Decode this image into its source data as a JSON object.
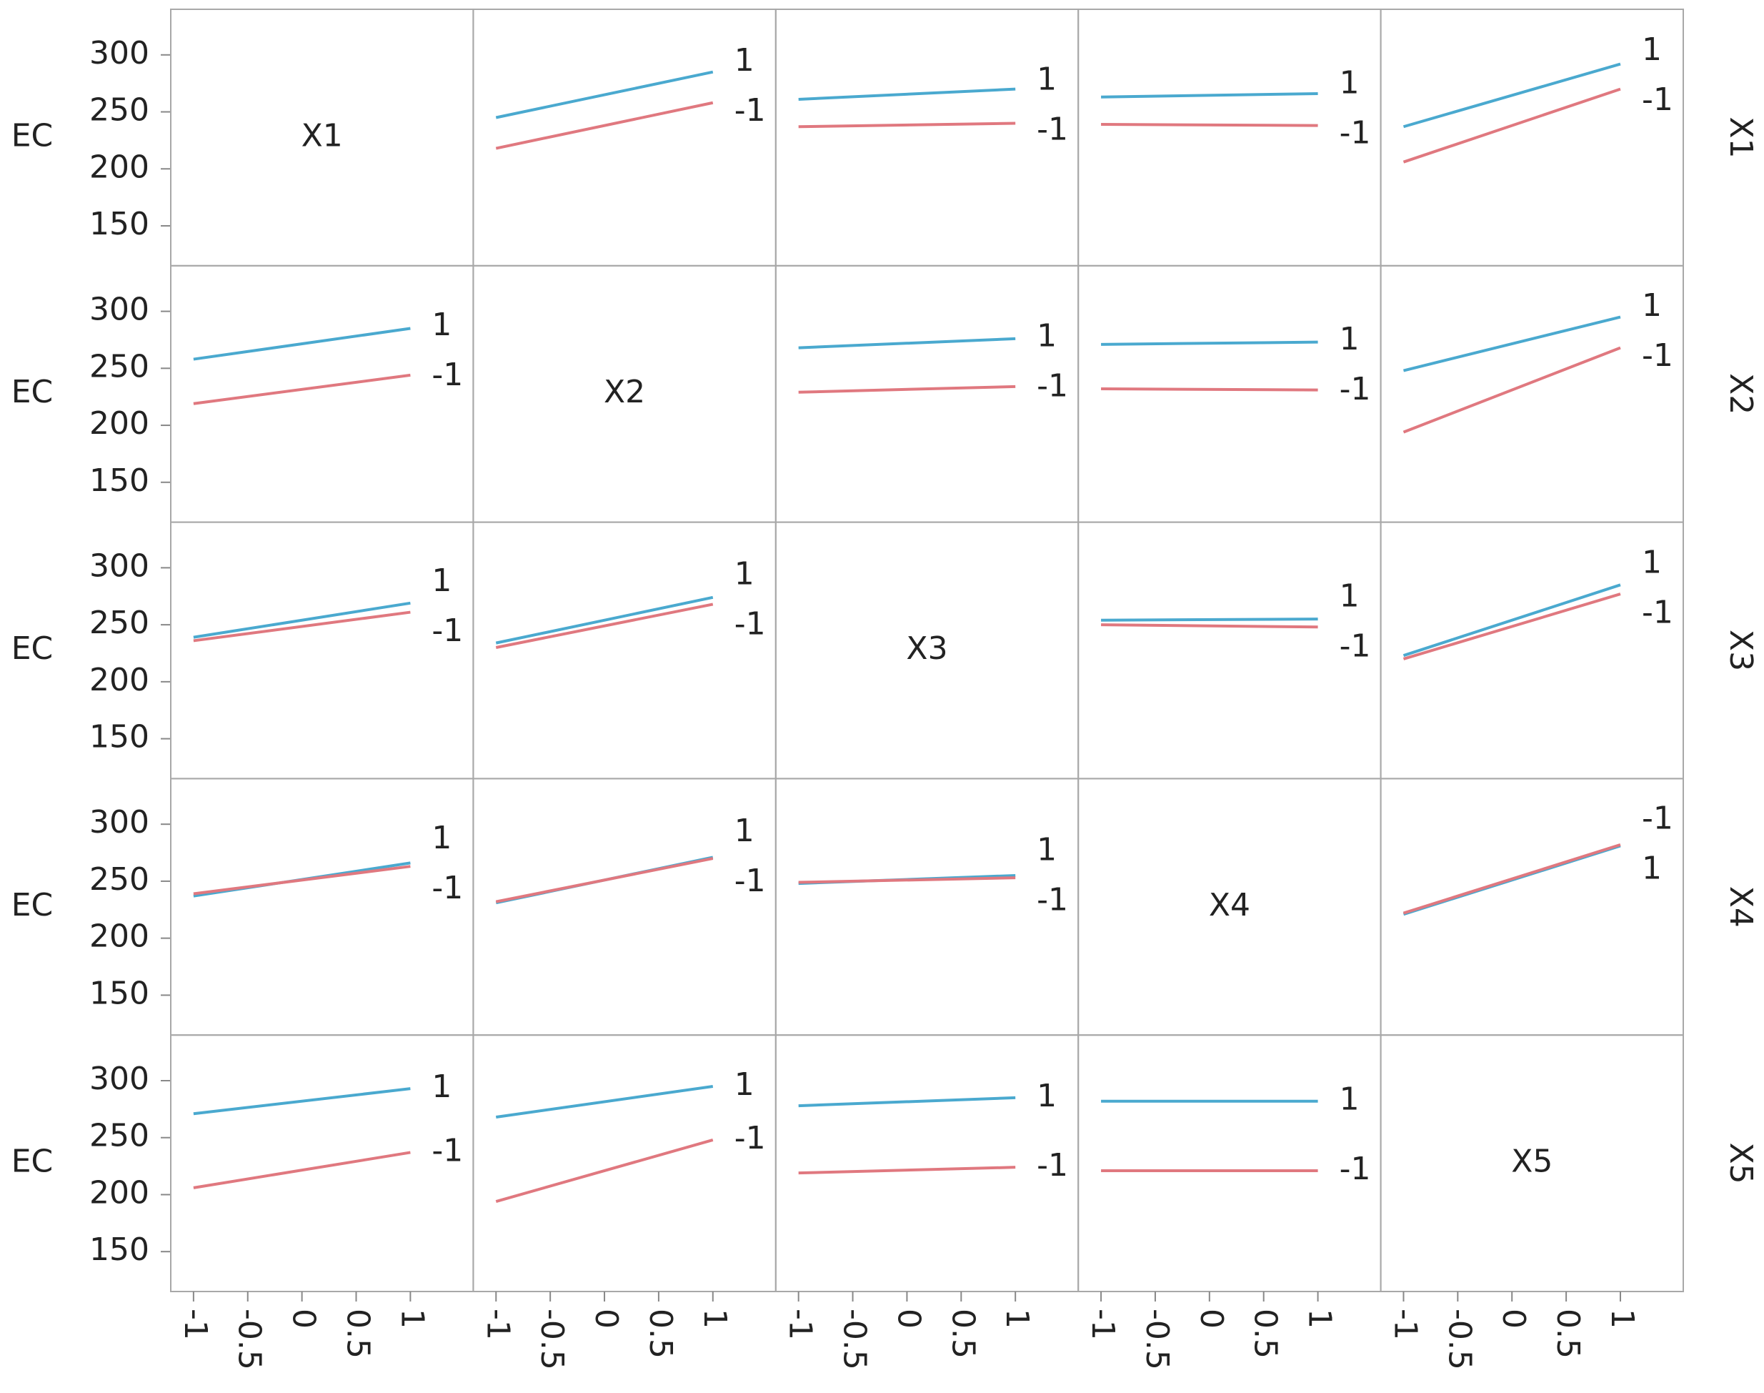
{
  "chart_data": {
    "type": "line",
    "y_label": "EC",
    "factors": [
      "X1",
      "X2",
      "X3",
      "X4",
      "X5"
    ],
    "x": [
      -1,
      1
    ],
    "xlim": [
      -1.21,
      1.58
    ],
    "xticks": [
      -1,
      -0.5,
      0,
      0.5,
      1
    ],
    "ylim": [
      115,
      340
    ],
    "yticks": [
      150,
      200,
      250,
      300
    ],
    "grid": false,
    "panels": [
      [
        null,
        {
          "series": [
            {
              "name": "1",
              "color": "#4aa9cf",
              "values": [
                245,
                285
              ]
            },
            {
              "name": "-1",
              "color": "#e0787f",
              "values": [
                218,
                258
              ]
            }
          ]
        },
        {
          "series": [
            {
              "name": "1",
              "color": "#4aa9cf",
              "values": [
                261,
                270
              ]
            },
            {
              "name": "-1",
              "color": "#e0787f",
              "values": [
                237,
                240
              ]
            }
          ]
        },
        {
          "series": [
            {
              "name": "1",
              "color": "#4aa9cf",
              "values": [
                263,
                266
              ]
            },
            {
              "name": "-1",
              "color": "#e0787f",
              "values": [
                239,
                238
              ]
            }
          ]
        },
        {
          "series": [
            {
              "name": "1",
              "color": "#4aa9cf",
              "values": [
                237,
                292
              ]
            },
            {
              "name": "-1",
              "color": "#e0787f",
              "values": [
                206,
                270
              ]
            }
          ]
        }
      ],
      [
        {
          "series": [
            {
              "name": "1",
              "color": "#4aa9cf",
              "values": [
                258,
                285
              ]
            },
            {
              "name": "-1",
              "color": "#e0787f",
              "values": [
                219,
                244
              ]
            }
          ]
        },
        null,
        {
          "series": [
            {
              "name": "1",
              "color": "#4aa9cf",
              "values": [
                268,
                276
              ]
            },
            {
              "name": "-1",
              "color": "#e0787f",
              "values": [
                229,
                234
              ]
            }
          ]
        },
        {
          "series": [
            {
              "name": "1",
              "color": "#4aa9cf",
              "values": [
                271,
                273
              ]
            },
            {
              "name": "-1",
              "color": "#e0787f",
              "values": [
                232,
                231
              ]
            }
          ]
        },
        {
          "series": [
            {
              "name": "1",
              "color": "#4aa9cf",
              "values": [
                248,
                295
              ]
            },
            {
              "name": "-1",
              "color": "#e0787f",
              "values": [
                194,
                268
              ]
            }
          ]
        }
      ],
      [
        {
          "series": [
            {
              "name": "1",
              "color": "#4aa9cf",
              "values": [
                239,
                269
              ]
            },
            {
              "name": "-1",
              "color": "#e0787f",
              "values": [
                236,
                261
              ]
            }
          ]
        },
        {
          "series": [
            {
              "name": "1",
              "color": "#4aa9cf",
              "values": [
                234,
                274
              ]
            },
            {
              "name": "-1",
              "color": "#e0787f",
              "values": [
                230,
                268
              ]
            }
          ]
        },
        null,
        {
          "series": [
            {
              "name": "1",
              "color": "#4aa9cf",
              "values": [
                254,
                255
              ]
            },
            {
              "name": "-1",
              "color": "#e0787f",
              "values": [
                250,
                248
              ]
            }
          ]
        },
        {
          "series": [
            {
              "name": "1",
              "color": "#4aa9cf",
              "values": [
                223,
                285
              ]
            },
            {
              "name": "-1",
              "color": "#e0787f",
              "values": [
                220,
                277
              ]
            }
          ]
        }
      ],
      [
        {
          "series": [
            {
              "name": "1",
              "color": "#4aa9cf",
              "values": [
                237,
                266
              ]
            },
            {
              "name": "-1",
              "color": "#e0787f",
              "values": [
                239,
                263
              ]
            }
          ]
        },
        {
          "series": [
            {
              "name": "1",
              "color": "#4aa9cf",
              "values": [
                231,
                271
              ]
            },
            {
              "name": "-1",
              "color": "#e0787f",
              "values": [
                232,
                270
              ]
            }
          ]
        },
        {
          "series": [
            {
              "name": "1",
              "color": "#4aa9cf",
              "values": [
                248,
                255
              ]
            },
            {
              "name": "-1",
              "color": "#e0787f",
              "values": [
                249,
                253
              ]
            }
          ]
        },
        null,
        {
          "series": [
            {
              "name": "1",
              "color": "#4aa9cf",
              "values": [
                221,
                281
              ]
            },
            {
              "name": "-1",
              "color": "#e0787f",
              "values": [
                222,
                282
              ]
            }
          ]
        }
      ],
      [
        {
          "series": [
            {
              "name": "1",
              "color": "#4aa9cf",
              "values": [
                271,
                293
              ]
            },
            {
              "name": "-1",
              "color": "#e0787f",
              "values": [
                206,
                237
              ]
            }
          ]
        },
        {
          "series": [
            {
              "name": "1",
              "color": "#4aa9cf",
              "values": [
                268,
                295
              ]
            },
            {
              "name": "-1",
              "color": "#e0787f",
              "values": [
                194,
                248
              ]
            }
          ]
        },
        {
          "series": [
            {
              "name": "1",
              "color": "#4aa9cf",
              "values": [
                278,
                285
              ]
            },
            {
              "name": "-1",
              "color": "#e0787f",
              "values": [
                219,
                224
              ]
            }
          ]
        },
        {
          "series": [
            {
              "name": "1",
              "color": "#4aa9cf",
              "values": [
                282,
                282
              ]
            },
            {
              "name": "-1",
              "color": "#e0787f",
              "values": [
                221,
                221
              ]
            }
          ]
        },
        null
      ]
    ]
  }
}
